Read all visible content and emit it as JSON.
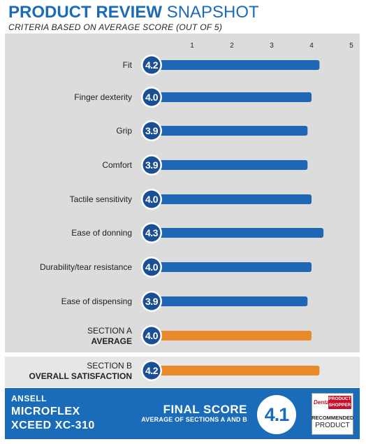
{
  "header": {
    "title_bold": "PRODUCT REVIEW",
    "title_light": "SNAPSHOT",
    "subtitle": "CRITERIA BASED ON AVERAGE SCORE (OUT OF 5)"
  },
  "chart_data": {
    "type": "bar",
    "orientation": "horizontal",
    "title": "PRODUCT REVIEW SNAPSHOT",
    "subtitle": "CRITERIA BASED ON AVERAGE SCORE (OUT OF 5)",
    "xlim": [
      0,
      5
    ],
    "xticks": [
      "1",
      "2",
      "3",
      "4",
      "5"
    ],
    "grid": false,
    "items": [
      {
        "label": "Fit",
        "value": 4.2,
        "score_label": "4.2",
        "color": "#1f66b5"
      },
      {
        "label": "Finger dexterity",
        "value": 4.0,
        "score_label": "4.0",
        "color": "#1f66b5"
      },
      {
        "label": "Grip",
        "value": 3.9,
        "score_label": "3.9",
        "color": "#1f66b5"
      },
      {
        "label": "Comfort",
        "value": 3.9,
        "score_label": "3.9",
        "color": "#1f66b5"
      },
      {
        "label": "Tactile sensitivity",
        "value": 4.0,
        "score_label": "4.0",
        "color": "#1f66b5"
      },
      {
        "label": "Ease of donning",
        "value": 4.3,
        "score_label": "4.3",
        "color": "#1f66b5"
      },
      {
        "label": "Durability/tear resistance",
        "value": 4.0,
        "score_label": "4.0",
        "color": "#1f66b5"
      },
      {
        "label": "Ease of dispensing",
        "value": 3.9,
        "score_label": "3.9",
        "color": "#1f66b5"
      },
      {
        "label_line1": "SECTION A",
        "label_line2": "AVERAGE",
        "value": 4.0,
        "score_label": "4.0",
        "color": "#e8892a"
      },
      {
        "label_line1": "SECTION B",
        "label_line2": "OVERALL SATISFACTION",
        "value": 4.2,
        "score_label": "4.2",
        "color": "#e8892a"
      }
    ]
  },
  "footer": {
    "brand": "ANSELL",
    "product_line1": "MICROFLEX",
    "product_line2": "XCEED XC-310",
    "final_label": "FINAL SCORE",
    "final_sub": "AVERAGE OF SECTIONS A AND B",
    "final_value": "4.1",
    "badge_logo_left": "Dental",
    "badge_logo_right_1": "PRODUCT",
    "badge_logo_right_2": "SHOPPER",
    "badge_line1": "RECOMMENDED",
    "badge_line2": "PRODUCT"
  },
  "colors": {
    "accent": "#1b6cb8",
    "bar_blue": "#1f66b5",
    "bar_orange": "#e8892a",
    "panel_gray": "#dcdcdc"
  }
}
